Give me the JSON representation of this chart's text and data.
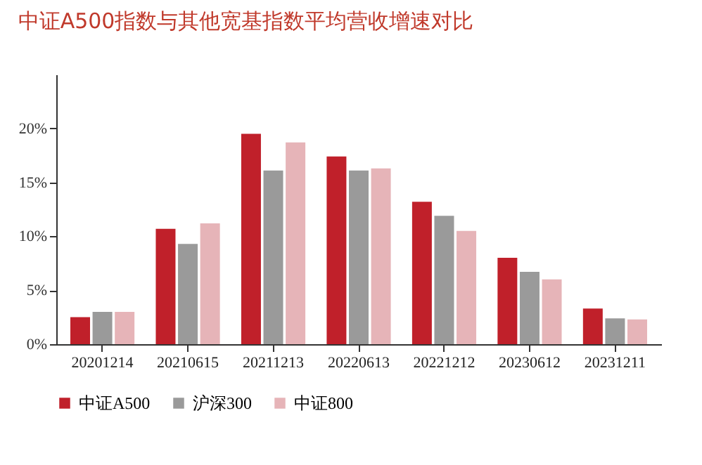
{
  "chart_data": {
    "type": "bar",
    "title": "中证A500指数与其他宽基指数平均营收增速对比",
    "categories": [
      "20201214",
      "20210615",
      "20211213",
      "20220613",
      "20221212",
      "20230612",
      "20231211"
    ],
    "series": [
      {
        "name": "中证A500",
        "color": "#c0202a",
        "values": [
          2.5,
          10.7,
          19.5,
          17.4,
          13.2,
          8.0,
          3.3
        ]
      },
      {
        "name": "沪深300",
        "color": "#9a9a9a",
        "values": [
          3.0,
          9.3,
          16.1,
          16.1,
          11.9,
          6.7,
          2.4
        ]
      },
      {
        "name": "中证800",
        "color": "#e6b4b8",
        "values": [
          3.0,
          11.2,
          18.7,
          16.3,
          10.5,
          6.0,
          2.3
        ]
      }
    ],
    "ylim": [
      0,
      25
    ],
    "yticks": [
      {
        "value": 0,
        "label": "0%"
      },
      {
        "value": 5,
        "label": "5%"
      },
      {
        "value": 10,
        "label": "10%"
      },
      {
        "value": 15,
        "label": "15%"
      },
      {
        "value": 20,
        "label": "20%"
      }
    ],
    "grid": false,
    "legend": "bottom"
  }
}
